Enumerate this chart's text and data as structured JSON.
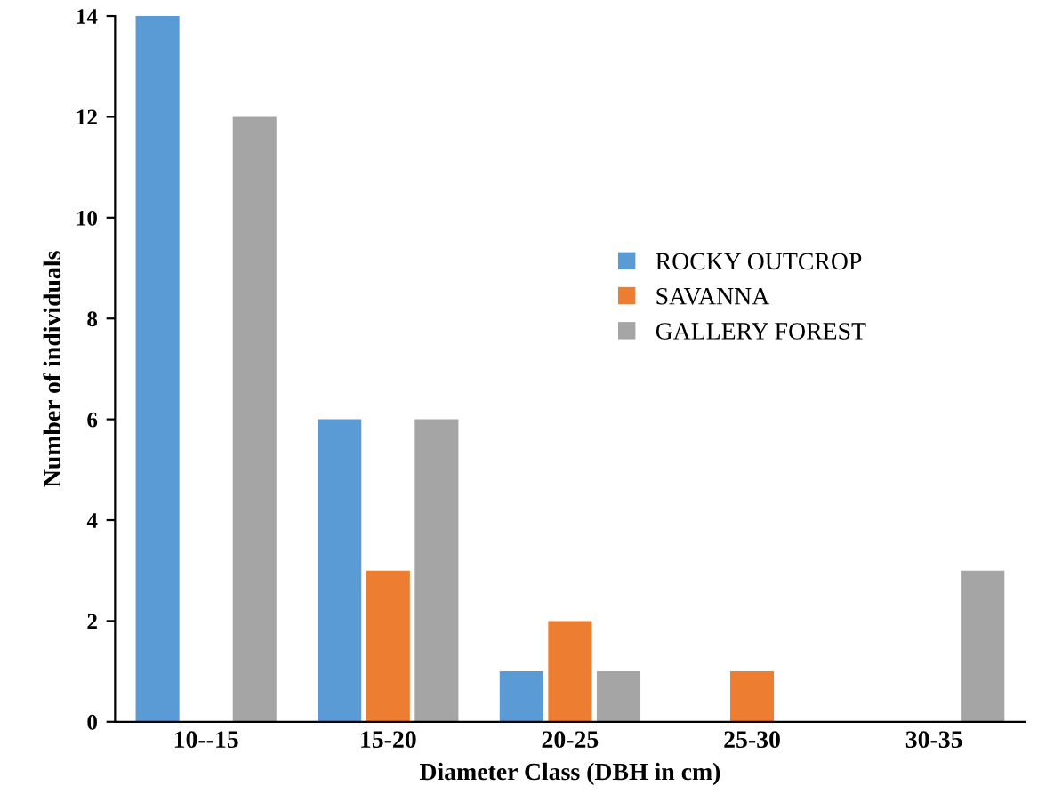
{
  "chart_data": {
    "type": "bar",
    "xlabel": "Diameter Class (DBH in cm)",
    "ylabel": "Number of individuals",
    "categories": [
      "10--15",
      "15-20",
      "20-25",
      "25-30",
      "30-35"
    ],
    "series": [
      {
        "name": "ROCKY OUTCROP",
        "color": "#5b9bd5",
        "values": [
          14,
          6,
          1,
          null,
          null
        ]
      },
      {
        "name": "SAVANNA",
        "color": "#ed7d31",
        "values": [
          null,
          3,
          2,
          1,
          null
        ]
      },
      {
        "name": "GALLERY FOREST",
        "color": "#a5a5a5",
        "values": [
          12,
          6,
          1,
          null,
          3
        ]
      }
    ],
    "ylim": [
      0,
      14
    ],
    "yticks": [
      0,
      2,
      4,
      6,
      8,
      10,
      12,
      14
    ],
    "grid": false,
    "legend": "right"
  }
}
